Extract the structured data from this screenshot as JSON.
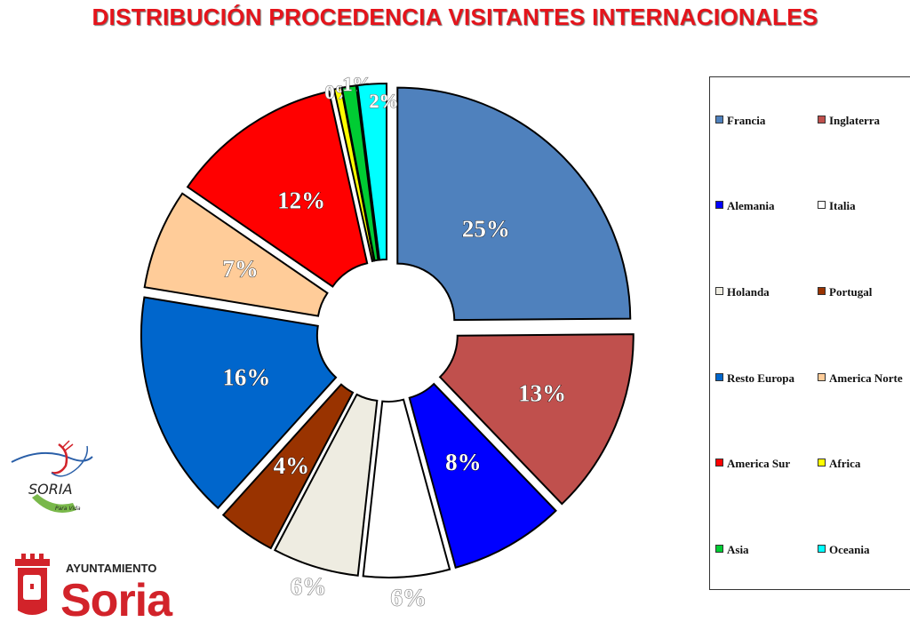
{
  "title": "DISTRIBUCIÓN PROCEDENCIA VISITANTES INTERNACIONALES",
  "chart_data": {
    "type": "pie",
    "style": "exploded-donut",
    "categories": [
      "Francia",
      "Inglaterra",
      "Alemania",
      "Italia",
      "Holanda",
      "Portugal",
      "Resto Europa",
      "America Norte",
      "America Sur",
      "Africa",
      "Asia",
      "Oceania"
    ],
    "values": [
      25,
      13,
      8,
      6,
      6,
      4,
      16,
      7,
      12,
      0.5,
      1,
      2
    ],
    "labels": [
      "25%",
      "13%",
      "8%",
      "6%",
      "6%",
      "4%",
      "16%",
      "7%",
      "12%",
      "0%",
      "1%",
      "2%"
    ],
    "colors": [
      "#4f81bd",
      "#c0504d",
      "#0000ff",
      "#ffffff",
      "#eeece1",
      "#993300",
      "#0066cc",
      "#ffcc99",
      "#ff0000",
      "#ffff00",
      "#00cc33",
      "#00ffff"
    ],
    "legend_position": "right"
  },
  "logos": {
    "tourism_text": "SORIA",
    "tourism_tagline": "Para Vida",
    "ayuntamiento_line1": "AYUNTAMIENTO",
    "ayuntamiento_line2": "Soria"
  }
}
